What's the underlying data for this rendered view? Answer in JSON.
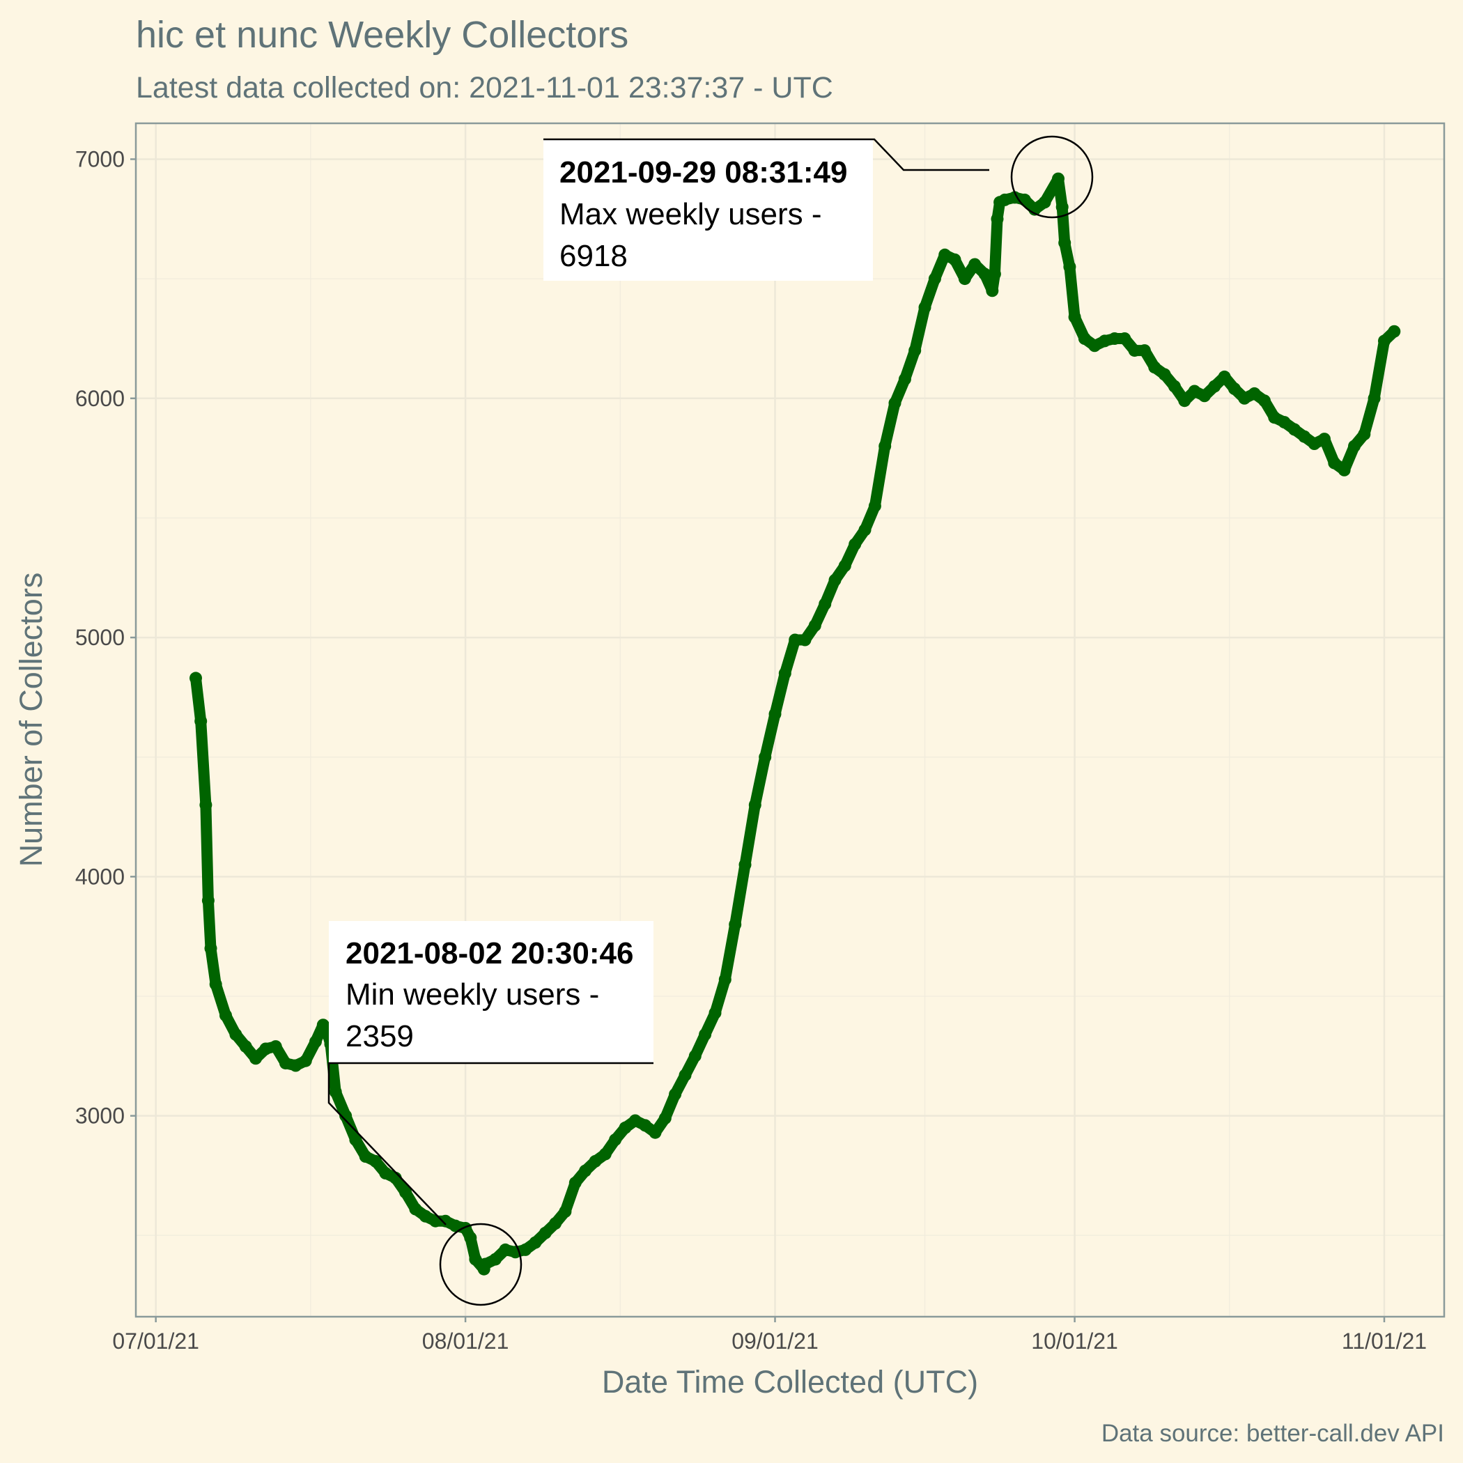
{
  "chart_data": {
    "type": "line",
    "title": "hic et nunc Weekly Collectors",
    "subtitle": "Latest data collected on: 2021-11-01 23:37:37  - UTC",
    "xlabel": "Date Time Collected (UTC)",
    "ylabel": "Number of Collectors",
    "caption": "Data source: better-call.dev API",
    "x_ticks": [
      {
        "date": "2021-07-01",
        "label": "07/01/21"
      },
      {
        "date": "2021-08-01",
        "label": "08/01/21"
      },
      {
        "date": "2021-09-01",
        "label": "09/01/21"
      },
      {
        "date": "2021-10-01",
        "label": "10/01/21"
      },
      {
        "date": "2021-11-01",
        "label": "11/01/21"
      }
    ],
    "y_ticks": [
      3000,
      4000,
      5000,
      6000,
      7000
    ],
    "xlim": [
      "2021-06-29",
      "2021-11-07"
    ],
    "ylim": [
      2160,
      7150
    ],
    "grid": true,
    "legend": "none",
    "colors": {
      "line": "#006400",
      "background": "#fdf6e3",
      "axis": "#8a9a9a"
    },
    "series": [
      {
        "points": [
          [
            "2021-07-05",
            4830
          ],
          [
            "2021-07-05T12:00",
            4650
          ],
          [
            "2021-07-06",
            4300
          ],
          [
            "2021-07-06T06:00",
            3900
          ],
          [
            "2021-07-06T12:00",
            3700
          ],
          [
            "2021-07-07",
            3550
          ],
          [
            "2021-07-08",
            3420
          ],
          [
            "2021-07-09",
            3340
          ],
          [
            "2021-07-10",
            3290
          ],
          [
            "2021-07-11",
            3240
          ],
          [
            "2021-07-12",
            3280
          ],
          [
            "2021-07-13",
            3290
          ],
          [
            "2021-07-14",
            3220
          ],
          [
            "2021-07-15",
            3210
          ],
          [
            "2021-07-16",
            3230
          ],
          [
            "2021-07-17",
            3310
          ],
          [
            "2021-07-17T18:00",
            3380
          ],
          [
            "2021-07-18",
            3370
          ],
          [
            "2021-07-18T12:00",
            3300
          ],
          [
            "2021-07-19",
            3100
          ],
          [
            "2021-07-20",
            3000
          ],
          [
            "2021-07-21",
            2900
          ],
          [
            "2021-07-22",
            2830
          ],
          [
            "2021-07-23",
            2810
          ],
          [
            "2021-07-24",
            2760
          ],
          [
            "2021-07-25",
            2740
          ],
          [
            "2021-07-26",
            2680
          ],
          [
            "2021-07-27",
            2610
          ],
          [
            "2021-07-28",
            2580
          ],
          [
            "2021-07-29",
            2560
          ],
          [
            "2021-07-30",
            2560
          ],
          [
            "2021-07-31",
            2540
          ],
          [
            "2021-08-01",
            2530
          ],
          [
            "2021-08-01T12:00",
            2490
          ],
          [
            "2021-08-02",
            2400
          ],
          [
            "2021-08-02T20:30",
            2359
          ],
          [
            "2021-08-03",
            2380
          ],
          [
            "2021-08-04",
            2400
          ],
          [
            "2021-08-05",
            2440
          ],
          [
            "2021-08-06",
            2430
          ],
          [
            "2021-08-07",
            2440
          ],
          [
            "2021-08-08",
            2470
          ],
          [
            "2021-08-09",
            2510
          ],
          [
            "2021-08-10",
            2550
          ],
          [
            "2021-08-11",
            2600
          ],
          [
            "2021-08-12",
            2720
          ],
          [
            "2021-08-13",
            2770
          ],
          [
            "2021-08-14",
            2810
          ],
          [
            "2021-08-15",
            2840
          ],
          [
            "2021-08-16",
            2900
          ],
          [
            "2021-08-17",
            2950
          ],
          [
            "2021-08-18",
            2980
          ],
          [
            "2021-08-19",
            2960
          ],
          [
            "2021-08-20",
            2930
          ],
          [
            "2021-08-21",
            2990
          ],
          [
            "2021-08-22",
            3090
          ],
          [
            "2021-08-23",
            3170
          ],
          [
            "2021-08-24",
            3250
          ],
          [
            "2021-08-25",
            3340
          ],
          [
            "2021-08-26",
            3430
          ],
          [
            "2021-08-27",
            3570
          ],
          [
            "2021-08-28",
            3800
          ],
          [
            "2021-08-29",
            4050
          ],
          [
            "2021-08-30",
            4300
          ],
          [
            "2021-08-31",
            4500
          ],
          [
            "2021-09-01",
            4680
          ],
          [
            "2021-09-02",
            4850
          ],
          [
            "2021-09-03",
            4990
          ],
          [
            "2021-09-04",
            4990
          ],
          [
            "2021-09-05",
            5050
          ],
          [
            "2021-09-06",
            5140
          ],
          [
            "2021-09-07",
            5240
          ],
          [
            "2021-09-08",
            5300
          ],
          [
            "2021-09-09",
            5390
          ],
          [
            "2021-09-10",
            5450
          ],
          [
            "2021-09-11",
            5550
          ],
          [
            "2021-09-12",
            5800
          ],
          [
            "2021-09-13",
            5980
          ],
          [
            "2021-09-14",
            6080
          ],
          [
            "2021-09-15",
            6200
          ],
          [
            "2021-09-16",
            6380
          ],
          [
            "2021-09-17",
            6500
          ],
          [
            "2021-09-18",
            6600
          ],
          [
            "2021-09-19",
            6580
          ],
          [
            "2021-09-20",
            6500
          ],
          [
            "2021-09-21",
            6560
          ],
          [
            "2021-09-22",
            6520
          ],
          [
            "2021-09-22T18:00",
            6450
          ],
          [
            "2021-09-23",
            6520
          ],
          [
            "2021-09-23T06:00",
            6750
          ],
          [
            "2021-09-23T12:00",
            6820
          ],
          [
            "2021-09-24",
            6830
          ],
          [
            "2021-09-25",
            6840
          ],
          [
            "2021-09-26",
            6830
          ],
          [
            "2021-09-27",
            6790
          ],
          [
            "2021-09-28",
            6820
          ],
          [
            "2021-09-29T08:31",
            6918
          ],
          [
            "2021-09-29T18:00",
            6800
          ],
          [
            "2021-09-30",
            6650
          ],
          [
            "2021-09-30T12:00",
            6550
          ],
          [
            "2021-10-01",
            6340
          ],
          [
            "2021-10-02",
            6250
          ],
          [
            "2021-10-03",
            6220
          ],
          [
            "2021-10-04",
            6240
          ],
          [
            "2021-10-05",
            6250
          ],
          [
            "2021-10-06",
            6250
          ],
          [
            "2021-10-07",
            6200
          ],
          [
            "2021-10-08",
            6200
          ],
          [
            "2021-10-09",
            6130
          ],
          [
            "2021-10-10",
            6100
          ],
          [
            "2021-10-11",
            6050
          ],
          [
            "2021-10-12",
            5990
          ],
          [
            "2021-10-13",
            6030
          ],
          [
            "2021-10-14",
            6010
          ],
          [
            "2021-10-15",
            6050
          ],
          [
            "2021-10-16",
            6090
          ],
          [
            "2021-10-17",
            6040
          ],
          [
            "2021-10-18",
            6000
          ],
          [
            "2021-10-19",
            6020
          ],
          [
            "2021-10-20",
            5990
          ],
          [
            "2021-10-21",
            5920
          ],
          [
            "2021-10-22",
            5900
          ],
          [
            "2021-10-23",
            5870
          ],
          [
            "2021-10-24",
            5840
          ],
          [
            "2021-10-25",
            5810
          ],
          [
            "2021-10-26",
            5830
          ],
          [
            "2021-10-27",
            5730
          ],
          [
            "2021-10-28",
            5700
          ],
          [
            "2021-10-29",
            5800
          ],
          [
            "2021-10-30",
            5850
          ],
          [
            "2021-10-31",
            6000
          ],
          [
            "2021-11-01",
            6240
          ],
          [
            "2021-11-02",
            6280
          ]
        ]
      }
    ],
    "annotations": [
      {
        "timestamp": "2021-09-29 08:31:49",
        "label": "Max weekly users -",
        "value": "6918"
      },
      {
        "timestamp": "2021-08-02 20:30:46",
        "label": "Min weekly users -",
        "value": "2359"
      }
    ]
  }
}
